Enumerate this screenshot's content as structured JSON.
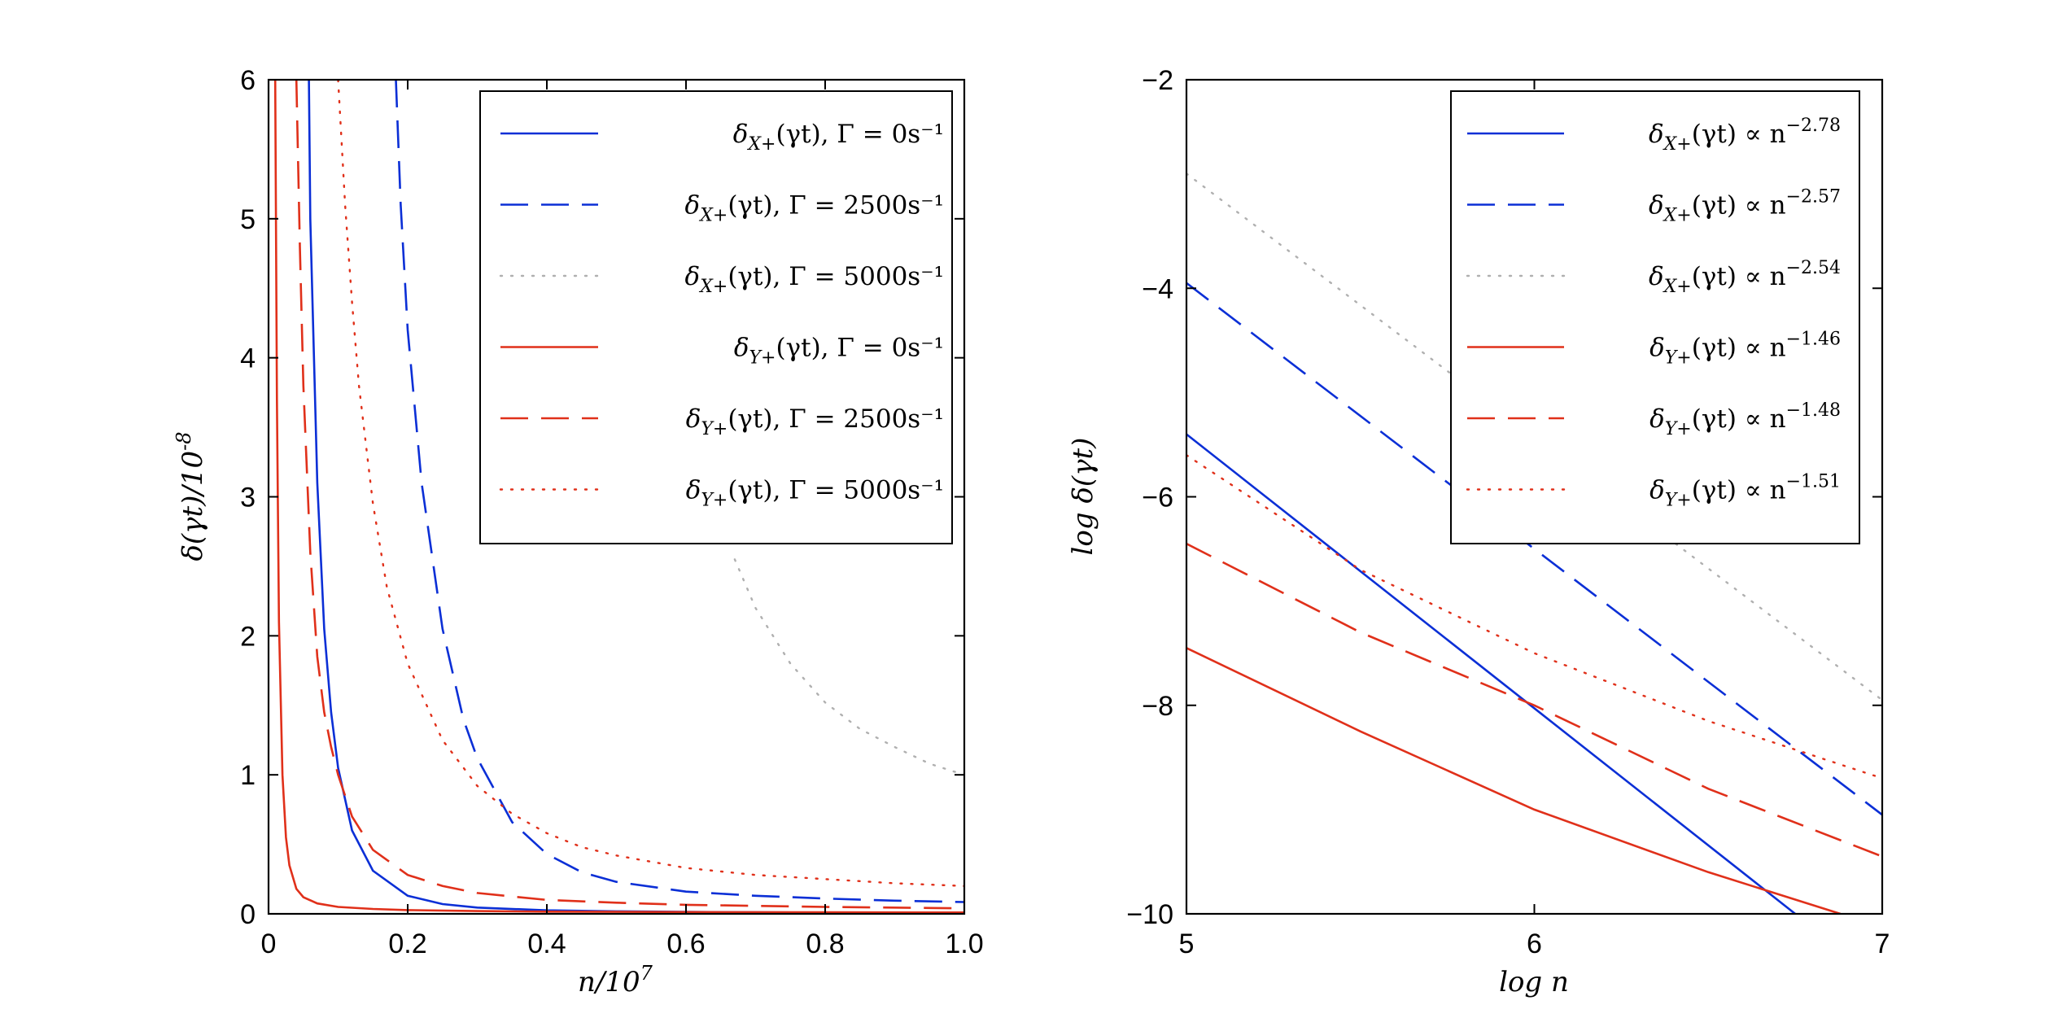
{
  "chart_data": [
    {
      "type": "line",
      "panel": "left",
      "title": "",
      "xlabel": "n/10^7",
      "ylabel": "δ(γt)/10^-8",
      "xlim": [
        0,
        1.0
      ],
      "ylim": [
        0,
        6
      ],
      "xticks": [
        "0",
        "0.2",
        "0.4",
        "0.6",
        "0.8",
        "1.0"
      ],
      "yticks": [
        "0",
        "1",
        "2",
        "3",
        "4",
        "5",
        "6"
      ],
      "legend_position": "top-right",
      "series": [
        {
          "name": "δX+(γt), Γ = 0s^-1",
          "label": "δX+(γt), Γ = 0s⁻¹",
          "color": "#0b2fd6",
          "dash": "solid",
          "x": [
            0.058,
            0.06,
            0.07,
            0.08,
            0.09,
            0.1,
            0.12,
            0.15,
            0.2,
            0.25,
            0.3,
            0.4,
            0.5,
            0.6,
            0.7,
            0.8,
            0.9,
            1.0
          ],
          "y": [
            6.0,
            5.0,
            3.1,
            2.05,
            1.45,
            1.05,
            0.6,
            0.31,
            0.13,
            0.07,
            0.045,
            0.025,
            0.018,
            0.014,
            0.011,
            0.009,
            0.008,
            0.007
          ]
        },
        {
          "name": "δX+(γt), Γ = 2500s^-1",
          "label": "δX+(γt), Γ = 2500s⁻¹",
          "color": "#0b2fd6",
          "dash": "dashed",
          "x": [
            0.183,
            0.19,
            0.2,
            0.22,
            0.25,
            0.28,
            0.3,
            0.35,
            0.4,
            0.45,
            0.5,
            0.6,
            0.7,
            0.8,
            0.9,
            1.0
          ],
          "y": [
            6.0,
            5.1,
            4.2,
            3.1,
            2.05,
            1.4,
            1.12,
            0.66,
            0.43,
            0.3,
            0.23,
            0.16,
            0.13,
            0.11,
            0.095,
            0.085
          ]
        },
        {
          "name": "δX+(γt), Γ = 5000s^-1",
          "label": "δX+(γt), Γ = 5000s⁻¹",
          "color": "#b0b0b0",
          "dash": "dotted",
          "x": [
            0.67,
            0.7,
            0.75,
            0.8,
            0.85,
            0.9,
            0.95,
            1.0
          ],
          "y": [
            2.55,
            2.2,
            1.8,
            1.52,
            1.33,
            1.2,
            1.08,
            1.0
          ]
        },
        {
          "name": "δY+(γt), Γ = 0s^-1",
          "label": "δY+(γt), Γ = 0s⁻¹",
          "color": "#e0301a",
          "dash": "solid",
          "x": [
            0.0096,
            0.012,
            0.015,
            0.02,
            0.025,
            0.03,
            0.04,
            0.05,
            0.07,
            0.1,
            0.15,
            0.2,
            0.3,
            0.4,
            0.6,
            0.8,
            1.0
          ],
          "y": [
            6.0,
            3.7,
            2.1,
            1.0,
            0.55,
            0.35,
            0.18,
            0.12,
            0.075,
            0.05,
            0.035,
            0.027,
            0.02,
            0.016,
            0.013,
            0.011,
            0.01
          ]
        },
        {
          "name": "δY+(γt), Γ = 2500s^-1",
          "label": "δY+(γt), Γ = 2500s⁻¹",
          "color": "#e0301a",
          "dash": "dashed",
          "x": [
            0.04,
            0.045,
            0.05,
            0.06,
            0.07,
            0.08,
            0.09,
            0.1,
            0.12,
            0.15,
            0.2,
            0.25,
            0.3,
            0.4,
            0.5,
            0.6,
            0.8,
            1.0
          ],
          "y": [
            6.0,
            4.8,
            3.8,
            2.6,
            1.85,
            1.45,
            1.2,
            1.0,
            0.7,
            0.46,
            0.28,
            0.2,
            0.15,
            0.1,
            0.08,
            0.065,
            0.05,
            0.04
          ]
        },
        {
          "name": "δY+(γt), Γ = 5000s^-1",
          "label": "δY+(γt), Γ = 5000s⁻¹",
          "color": "#e0301a",
          "dash": "dotted",
          "x": [
            0.1,
            0.11,
            0.12,
            0.13,
            0.15,
            0.17,
            0.2,
            0.25,
            0.3,
            0.35,
            0.4,
            0.45,
            0.5,
            0.6,
            0.7,
            0.8,
            0.9,
            1.0
          ],
          "y": [
            6.0,
            5.1,
            4.4,
            3.8,
            2.95,
            2.35,
            1.8,
            1.25,
            0.92,
            0.72,
            0.58,
            0.48,
            0.42,
            0.33,
            0.28,
            0.25,
            0.22,
            0.2
          ]
        }
      ]
    },
    {
      "type": "line",
      "panel": "right",
      "title": "",
      "xlabel": "log n",
      "ylabel": "log δ(γt)",
      "xlim": [
        5,
        7
      ],
      "ylim": [
        -10,
        -2
      ],
      "xticks": [
        "5",
        "6",
        "7"
      ],
      "yticks": [
        "−2",
        "−4",
        "−6",
        "−8",
        "−10"
      ],
      "legend_position": "top-right",
      "series": [
        {
          "name": "δX+(γt) ∝ n^-2.78",
          "label": "δX+(γt) ∝ n",
          "exponent": "−2.78",
          "color": "#0b2fd6",
          "dash": "solid",
          "x": [
            5.0,
            6.75
          ],
          "y": [
            -5.4,
            -10.0
          ]
        },
        {
          "name": "δX+(γt) ∝ n^-2.57",
          "label": "δX+(γt) ∝ n",
          "exponent": "−2.57",
          "color": "#0b2fd6",
          "dash": "dashed",
          "x": [
            5.0,
            7.0
          ],
          "y": [
            -3.95,
            -9.05
          ]
        },
        {
          "name": "δX+(γt) ∝ n^-2.54",
          "label": "δX+(γt) ∝ n",
          "exponent": "−2.54",
          "color": "#b0b0b0",
          "dash": "dotted",
          "x": [
            5.0,
            7.0
          ],
          "y": [
            -2.9,
            -7.95
          ]
        },
        {
          "name": "δY+(γt) ∝ n^-1.46",
          "label": "δY+(γt) ∝ n",
          "exponent": "−1.46",
          "color": "#e0301a",
          "dash": "solid",
          "x": [
            5.0,
            5.5,
            6.0,
            6.5,
            6.88
          ],
          "y": [
            -7.45,
            -8.25,
            -9.0,
            -9.6,
            -10.0
          ]
        },
        {
          "name": "δY+(γt) ∝ n^-1.48",
          "label": "δY+(γt) ∝ n",
          "exponent": "−1.48",
          "color": "#e0301a",
          "dash": "dashed",
          "x": [
            5.0,
            5.5,
            6.0,
            6.5,
            7.0
          ],
          "y": [
            -6.45,
            -7.3,
            -8.0,
            -8.8,
            -9.45
          ]
        },
        {
          "name": "δY+(γt) ∝ n^-1.51",
          "label": "δY+(γt) ∝ n",
          "exponent": "−1.51",
          "color": "#e0301a",
          "dash": "dotted",
          "x": [
            5.0,
            5.5,
            6.0,
            6.5,
            7.0
          ],
          "y": [
            -5.6,
            -6.7,
            -7.5,
            -8.15,
            -8.7
          ]
        }
      ]
    }
  ]
}
